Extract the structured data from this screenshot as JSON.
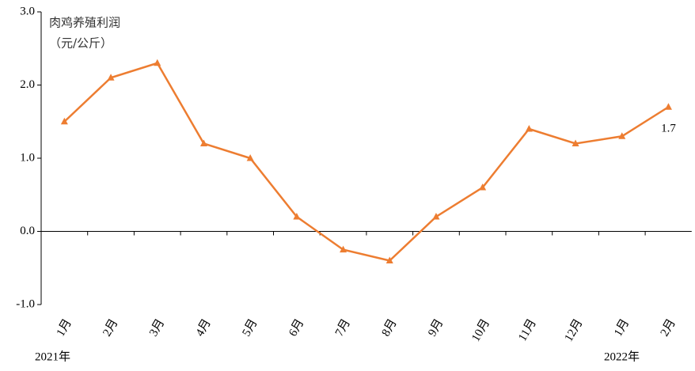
{
  "chart_data": {
    "type": "line",
    "title": "肉鸡养殖利润",
    "subtitle": "（元/公斤）",
    "categories": [
      "1月",
      "2月",
      "3月",
      "4月",
      "5月",
      "6月",
      "7月",
      "8月",
      "9月",
      "10月",
      "11月",
      "12月",
      "1月",
      "2月"
    ],
    "series": [
      {
        "name": "肉鸡养殖利润",
        "color": "#ed7d31",
        "values": [
          1.5,
          2.1,
          2.3,
          1.2,
          1.0,
          0.2,
          -0.25,
          -0.4,
          0.2,
          0.6,
          1.4,
          1.2,
          1.3,
          1.7
        ]
      }
    ],
    "ylim": [
      -1,
      3
    ],
    "yticks": [
      {
        "value": -1,
        "label": "-1.0"
      },
      {
        "value": 0,
        "label": "0.0"
      },
      {
        "value": 1,
        "label": "1.0"
      },
      {
        "value": 2,
        "label": "2.0"
      },
      {
        "value": 3,
        "label": "3.0"
      }
    ],
    "year_labels": [
      "2021年",
      "2022年"
    ]
  }
}
